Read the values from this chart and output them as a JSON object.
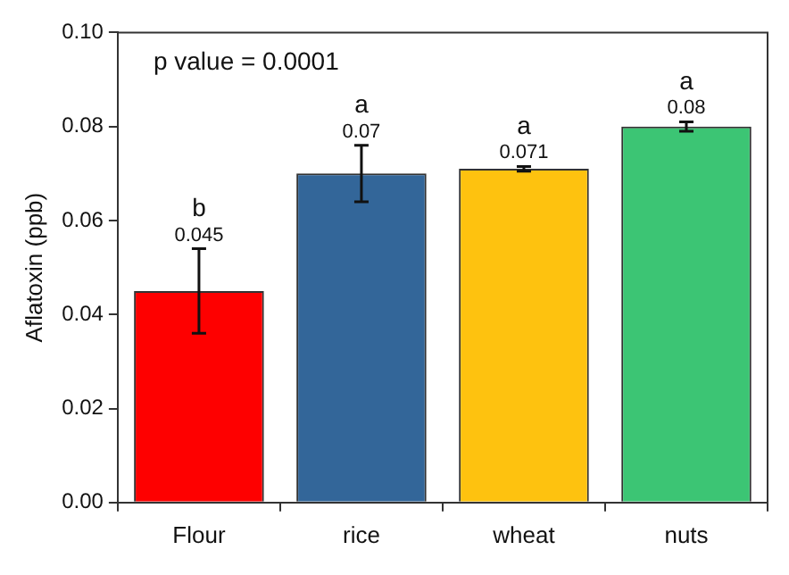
{
  "chart_data": {
    "type": "bar",
    "ylabel": "Aflatoxin (ppb)",
    "categories": [
      "Flour",
      "rice",
      "wheat",
      "nuts"
    ],
    "values": [
      0.045,
      0.07,
      0.071,
      0.08
    ],
    "colors": [
      "#fe0000",
      "#336699",
      "#fec20f",
      "#3cc574"
    ],
    "errors": [
      [
        0.036,
        0.054
      ],
      [
        0.064,
        0.076
      ],
      0.0005,
      0.001
    ],
    "value_labels": [
      "0.045",
      "0.07",
      "0.071",
      "0.08"
    ],
    "ylim": [
      0,
      0.1
    ],
    "yticks": [
      {
        "value": 0,
        "label": "0.00"
      },
      {
        "value": 0.02,
        "label": "0.02"
      },
      {
        "value": 0.04,
        "label": "0.04"
      },
      {
        "value": 0.06,
        "label": "0.06"
      },
      {
        "value": 0.08,
        "label": "0.08"
      },
      {
        "value": 0.1,
        "label": "0.10"
      }
    ],
    "grid": false,
    "legend": false,
    "annotations": [
      "p value = 0.0001",
      "b",
      "a",
      "a",
      "a"
    ]
  }
}
